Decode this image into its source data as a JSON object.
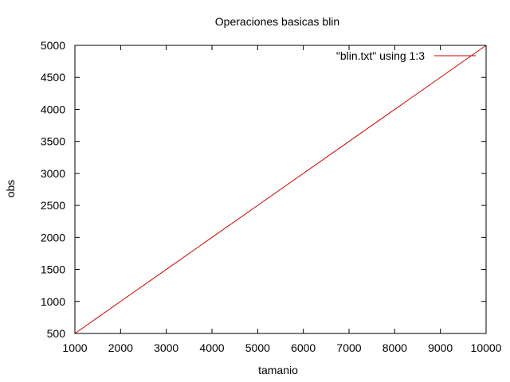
{
  "chart_data": {
    "type": "line",
    "title": "Operaciones basicas blin",
    "xlabel": "tamanio",
    "ylabel": "obs",
    "xlim": [
      1000,
      10000
    ],
    "ylim": [
      500,
      5000
    ],
    "xticks": [
      1000,
      2000,
      3000,
      4000,
      5000,
      6000,
      7000,
      8000,
      9000,
      10000
    ],
    "yticks": [
      500,
      1000,
      1500,
      2000,
      2500,
      3000,
      3500,
      4000,
      4500,
      5000
    ],
    "grid": false,
    "legend_position": "top-right",
    "series": [
      {
        "name": "\"blin.txt\" using 1:3",
        "color": "#cc0000",
        "x": [
          1000,
          2000,
          3000,
          4000,
          5000,
          6000,
          7000,
          8000,
          9000,
          10000
        ],
        "y": [
          500,
          1000,
          1500,
          2000,
          2500,
          3000,
          3500,
          4000,
          4500,
          5000
        ]
      }
    ]
  }
}
